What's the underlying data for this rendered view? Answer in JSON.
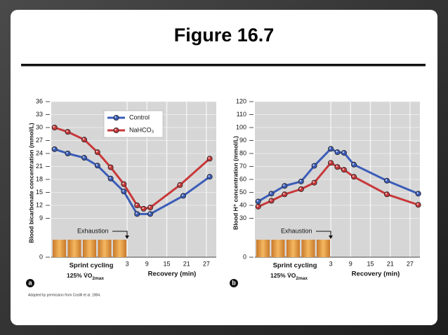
{
  "title": "Figure 16.7",
  "credit": "Adapted by permission from Costill et al. 1984.",
  "chart_data": [
    {
      "type": "line",
      "panel": "a",
      "y_label": "Blood bicarbonate concentration (mmol/L)",
      "x_label": "Recovery (min)",
      "exercise_label": "Sprint cycling",
      "vo2_main": "125% V̇O",
      "vo2_sub": "2max",
      "annotation": "Exhaustion",
      "xlim": [
        -20,
        30
      ],
      "xticks": [
        3,
        9,
        15,
        21,
        27
      ],
      "ylim": [
        0,
        36
      ],
      "yticks": [
        0,
        9,
        12,
        15,
        18,
        21,
        24,
        27,
        30,
        33,
        36
      ],
      "grid": true,
      "legend": "upper center",
      "series": [
        {
          "name": "Control",
          "color": "#3b5cb8",
          "x": [
            -19,
            -15,
            -10,
            -6,
            -2,
            2,
            6,
            10,
            20,
            28
          ],
          "values": [
            25,
            24,
            23,
            21.2,
            18.2,
            15.2,
            10,
            10,
            14.2,
            18.6
          ]
        },
        {
          "name": "NaHCO₃",
          "color": "#c8383a",
          "x": [
            -19,
            -15,
            -10,
            -6,
            -2,
            2,
            6,
            8,
            10,
            19,
            28
          ],
          "values": [
            30,
            29,
            27.2,
            24.3,
            20.8,
            16.9,
            12,
            11.2,
            11.5,
            16.7,
            22.8
          ]
        }
      ]
    },
    {
      "type": "line",
      "panel": "b",
      "y_label": "Blood H⁺ concentration (mmol/L)",
      "x_label": "Recovery (min)",
      "exercise_label": "Sprint cycling",
      "vo2_main": "125% V̇O",
      "vo2_sub": "2max",
      "annotation": "Exhaustion",
      "xlim": [
        -20,
        30
      ],
      "xticks": [
        3,
        9,
        15,
        21,
        27
      ],
      "ylim": [
        0,
        120
      ],
      "yticks": [
        0,
        30,
        40,
        50,
        60,
        70,
        80,
        90,
        100,
        110,
        120
      ],
      "grid": true,
      "series": [
        {
          "color": "#3b5cb8",
          "x": [
            -19,
            -15,
            -11,
            -6,
            -2,
            3,
            5,
            7,
            10,
            20,
            29.5
          ],
          "values": [
            43,
            49,
            55,
            58.4,
            70.5,
            83.6,
            81,
            80.5,
            71.4,
            59,
            49
          ]
        },
        {
          "color": "#c8383a",
          "x": [
            -19,
            -15,
            -11,
            -6,
            -2,
            3,
            5,
            7,
            10,
            20,
            29.5
          ],
          "values": [
            39,
            43.5,
            48.5,
            52.5,
            57.5,
            72.8,
            69.6,
            67.4,
            62,
            48.5,
            40.4
          ]
        }
      ]
    }
  ]
}
